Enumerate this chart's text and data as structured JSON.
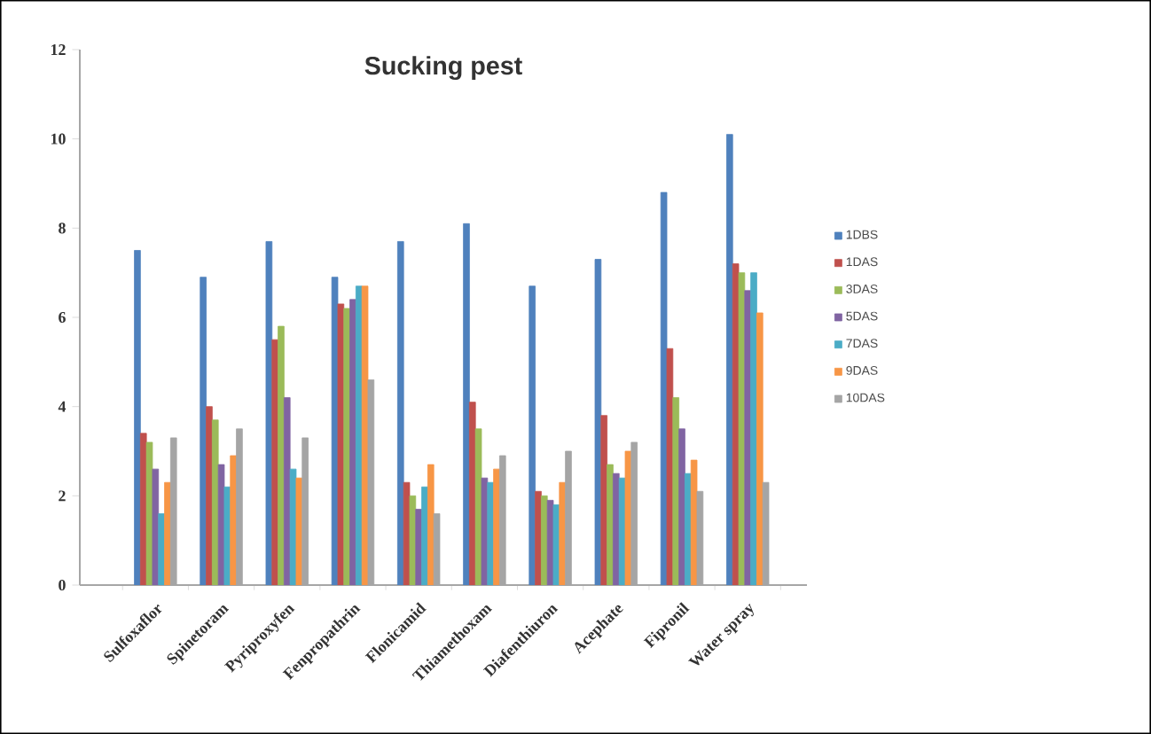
{
  "chart_data": {
    "type": "bar",
    "title": "Sucking pest",
    "categories": [
      "Sulfoxaflor",
      "Spinetoram",
      "Pyriproxyfen",
      "Fenpropathrin",
      "Flonicamid",
      "Thiamethoxam",
      "Diafenthiuron",
      "Acephate",
      "Fipronil",
      "Water spray"
    ],
    "series": [
      {
        "name": "1DBS",
        "color": "#4f81bd",
        "values": [
          7.5,
          6.9,
          7.7,
          6.9,
          7.7,
          8.1,
          6.7,
          7.3,
          8.8,
          10.1
        ]
      },
      {
        "name": "1DAS",
        "color": "#c0504d",
        "values": [
          3.4,
          4.0,
          5.5,
          6.3,
          2.3,
          4.1,
          2.1,
          3.8,
          5.3,
          7.2
        ]
      },
      {
        "name": "3DAS",
        "color": "#9bbb59",
        "values": [
          3.2,
          3.7,
          5.8,
          6.2,
          2.0,
          3.5,
          2.0,
          2.7,
          4.2,
          7.0
        ]
      },
      {
        "name": "5DAS",
        "color": "#8064a2",
        "values": [
          2.6,
          2.7,
          4.2,
          6.4,
          1.7,
          2.4,
          1.9,
          2.5,
          3.5,
          6.6
        ]
      },
      {
        "name": "7DAS",
        "color": "#4bacc6",
        "values": [
          1.6,
          2.2,
          2.6,
          6.7,
          2.2,
          2.3,
          1.8,
          2.4,
          2.5,
          7.0
        ]
      },
      {
        "name": "9DAS",
        "color": "#f79646",
        "values": [
          2.3,
          2.9,
          2.4,
          6.7,
          2.7,
          2.6,
          2.3,
          3.0,
          2.8,
          6.1
        ]
      },
      {
        "name": "10DAS",
        "color": "#a5a5a5",
        "values": [
          3.3,
          3.5,
          3.3,
          4.6,
          1.6,
          2.9,
          3.0,
          3.2,
          2.1,
          2.3
        ]
      }
    ],
    "ylim": [
      0,
      12
    ],
    "yticks": [
      0,
      2,
      4,
      6,
      8,
      10,
      12
    ],
    "legend": "right"
  }
}
